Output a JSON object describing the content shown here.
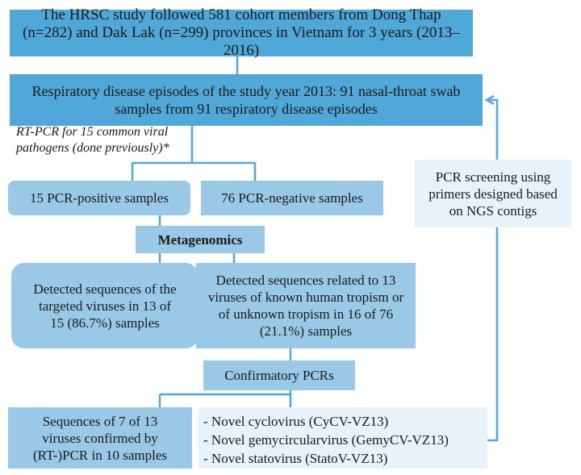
{
  "boxes": {
    "study": "The HRSC study followed 581 cohort members from Dong Thap (n=282) and Dak Lak (n=299) provinces in Vietnam for 3 years (2013–2016)",
    "episodes": "Respiratory disease episodes of the study year 2013: 91 nasal-throat swab samples from 91 respiratory disease episodes",
    "rtpcr_note": "RT-PCR for 15 common viral pathogens (done previously)*",
    "positive": "15 PCR-positive samples",
    "negative": "76 PCR-negative samples",
    "metagenomics": "Metagenomics",
    "detected_targeted": "Detected sequences of the targeted viruses in 13 of 15 (86.7%) samples",
    "detected_known": "Detected sequences related to 13 viruses of known human tropism or of unknown tropism in 16 of 76 (21.1%) samples",
    "confirmatory": "Confirmatory PCRs",
    "confirmed": "Sequences of 7 of 13 viruses confirmed by (RT-)PCR in 10 samples",
    "pcr_screening": "PCR screening using primers designed based on NGS contigs"
  },
  "novel_viruses": [
    "- Novel cyclovirus (CyCV-VZ13)",
    "- Novel gemycircularvirus (GemyCV-VZ13)",
    "- Novel statovirus (StatoV-VZ13)"
  ],
  "colors": {
    "dark_blue": "#4fa8d8",
    "mid_blue": "#99c9e7",
    "light_blue": "#cfe4f2",
    "pale_blue": "#e8f2fa",
    "connector": "#4fa8d8"
  }
}
